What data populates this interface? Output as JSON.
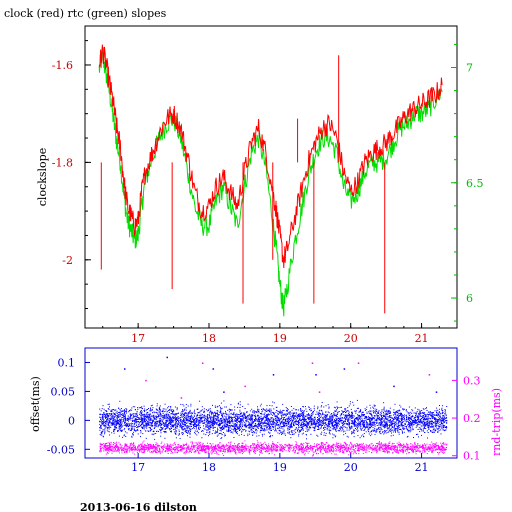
{
  "chart_data": [
    {
      "type": "line",
      "title": "clock (red) rtc (green) slopes",
      "xlabel": "",
      "ylabel": "clockslope",
      "x_ticks": [
        17,
        18,
        19,
        20,
        21
      ],
      "xlim": [
        16.25,
        21.5
      ],
      "ylim": [
        -2.14,
        -1.52
      ],
      "y_ticks": [
        -1.6,
        -1.8,
        -2
      ],
      "y_tick_labels": [
        "-1.6",
        "-1.8",
        "-2"
      ],
      "y2_ticks": [
        7,
        6.5,
        6
      ],
      "y2_tick_labels": [
        "7",
        "6.5",
        "6"
      ],
      "y2lim": [
        5.87,
        7.18
      ],
      "colors": {
        "axes": "#000000",
        "clock": "#ff0000",
        "rtc": "#00dd00",
        "x_tick_labels": "#cc0000",
        "y2_tick_labels": "#00bb00"
      },
      "grid": false,
      "series": [
        {
          "name": "clock",
          "color": "#ff0000",
          "points": [
            [
              16.45,
              -1.6
            ],
            [
              16.5,
              -1.57
            ],
            [
              16.55,
              -1.6
            ],
            [
              16.6,
              -1.64
            ],
            [
              16.65,
              -1.68
            ],
            [
              16.7,
              -1.73
            ],
            [
              16.75,
              -1.77
            ],
            [
              16.8,
              -1.84
            ],
            [
              16.85,
              -1.89
            ],
            [
              16.9,
              -1.91
            ],
            [
              16.95,
              -1.93
            ],
            [
              17.0,
              -1.92
            ],
            [
              17.05,
              -1.86
            ],
            [
              17.1,
              -1.82
            ],
            [
              17.2,
              -1.78
            ],
            [
              17.3,
              -1.74
            ],
            [
              17.4,
              -1.71
            ],
            [
              17.5,
              -1.7
            ],
            [
              17.6,
              -1.73
            ],
            [
              17.7,
              -1.79
            ],
            [
              17.8,
              -1.86
            ],
            [
              17.9,
              -1.9
            ],
            [
              18.0,
              -1.89
            ],
            [
              18.1,
              -1.85
            ],
            [
              18.2,
              -1.83
            ],
            [
              18.3,
              -1.86
            ],
            [
              18.4,
              -1.89
            ],
            [
              18.5,
              -1.82
            ],
            [
              18.6,
              -1.76
            ],
            [
              18.7,
              -1.73
            ],
            [
              18.8,
              -1.78
            ],
            [
              18.9,
              -1.86
            ],
            [
              18.95,
              -1.9
            ],
            [
              19.0,
              -1.95
            ],
            [
              19.05,
              -2.0
            ],
            [
              19.1,
              -1.98
            ],
            [
              19.2,
              -1.92
            ],
            [
              19.3,
              -1.86
            ],
            [
              19.4,
              -1.8
            ],
            [
              19.5,
              -1.76
            ],
            [
              19.6,
              -1.73
            ],
            [
              19.7,
              -1.72
            ],
            [
              19.8,
              -1.75
            ],
            [
              19.9,
              -1.82
            ],
            [
              20.0,
              -1.86
            ],
            [
              20.1,
              -1.84
            ],
            [
              20.2,
              -1.8
            ],
            [
              20.3,
              -1.78
            ],
            [
              20.4,
              -1.77
            ],
            [
              20.5,
              -1.76
            ],
            [
              20.6,
              -1.74
            ],
            [
              20.7,
              -1.72
            ],
            [
              20.8,
              -1.7
            ],
            [
              20.9,
              -1.69
            ],
            [
              21.0,
              -1.68
            ],
            [
              21.1,
              -1.67
            ],
            [
              21.2,
              -1.66
            ],
            [
              21.3,
              -1.64
            ]
          ],
          "spikes": [
            [
              16.48,
              -2.02
            ],
            [
              17.48,
              -2.06
            ],
            [
              18.48,
              -2.09
            ],
            [
              19.48,
              -2.09
            ],
            [
              20.48,
              -2.11
            ],
            [
              19.83,
              -1.58
            ],
            [
              19.25,
              -1.71
            ],
            [
              18.9,
              -2.0
            ]
          ]
        },
        {
          "name": "rtc",
          "color": "#00dd00",
          "axis": "right",
          "points": [
            [
              16.45,
              -1.61
            ],
            [
              16.5,
              -1.58
            ],
            [
              16.55,
              -1.62
            ],
            [
              16.6,
              -1.66
            ],
            [
              16.65,
              -1.71
            ],
            [
              16.7,
              -1.76
            ],
            [
              16.75,
              -1.8
            ],
            [
              16.8,
              -1.87
            ],
            [
              16.85,
              -1.92
            ],
            [
              16.9,
              -1.94
            ],
            [
              16.95,
              -1.96
            ],
            [
              17.0,
              -1.95
            ],
            [
              17.05,
              -1.89
            ],
            [
              17.1,
              -1.84
            ],
            [
              17.2,
              -1.79
            ],
            [
              17.3,
              -1.75
            ],
            [
              17.4,
              -1.72
            ],
            [
              17.5,
              -1.71
            ],
            [
              17.6,
              -1.75
            ],
            [
              17.7,
              -1.82
            ],
            [
              17.8,
              -1.89
            ],
            [
              17.9,
              -1.93
            ],
            [
              18.0,
              -1.93
            ],
            [
              18.1,
              -1.88
            ],
            [
              18.2,
              -1.85
            ],
            [
              18.3,
              -1.89
            ],
            [
              18.4,
              -1.93
            ],
            [
              18.5,
              -1.85
            ],
            [
              18.6,
              -1.78
            ],
            [
              18.7,
              -1.75
            ],
            [
              18.8,
              -1.81
            ],
            [
              18.9,
              -1.92
            ],
            [
              18.95,
              -1.98
            ],
            [
              19.0,
              -2.05
            ],
            [
              19.05,
              -2.1
            ],
            [
              19.1,
              -2.06
            ],
            [
              19.2,
              -1.97
            ],
            [
              19.3,
              -1.9
            ],
            [
              19.4,
              -1.83
            ],
            [
              19.5,
              -1.78
            ],
            [
              19.6,
              -1.75
            ],
            [
              19.7,
              -1.75
            ],
            [
              19.8,
              -1.78
            ],
            [
              19.9,
              -1.85
            ],
            [
              20.0,
              -1.88
            ],
            [
              20.1,
              -1.86
            ],
            [
              20.2,
              -1.82
            ],
            [
              20.3,
              -1.8
            ],
            [
              20.4,
              -1.8
            ],
            [
              20.5,
              -1.79
            ],
            [
              20.6,
              -1.76
            ],
            [
              20.7,
              -1.73
            ],
            [
              20.8,
              -1.72
            ],
            [
              20.9,
              -1.7
            ],
            [
              21.0,
              -1.7
            ],
            [
              21.1,
              -1.69
            ],
            [
              21.2,
              -1.67
            ],
            [
              21.3,
              -1.65
            ]
          ]
        }
      ]
    },
    {
      "type": "scatter",
      "xlabel": "",
      "ylabel": "offset(ms)",
      "y2label": "rnd-trip(ms)",
      "x_ticks": [
        17,
        18,
        19,
        20,
        21
      ],
      "xlim": [
        16.25,
        21.5
      ],
      "ylim": [
        -0.065,
        0.125
      ],
      "y_ticks": [
        0.1,
        0.05,
        0,
        -0.05
      ],
      "y_tick_labels": [
        "0.1",
        "0.05",
        "0",
        "-0.05"
      ],
      "y2_ticks": [
        0.3,
        0.2,
        0.1
      ],
      "y2_tick_labels": [
        "0.3",
        "0.2",
        "0.1"
      ],
      "y2lim": [
        0.094,
        0.386
      ],
      "colors": {
        "axes": "#0000cc",
        "offset": "#0000ff",
        "rnd_trip": "#ff00ff",
        "x_tick_labels": "#0000cc",
        "ylabel": "#000000",
        "y2label": "#ff00ff"
      },
      "grid": false,
      "series": [
        {
          "name": "offset",
          "color": "#0000ff",
          "x_range": [
            16.45,
            21.35
          ],
          "center": 0.0,
          "spread": 0.03,
          "count": 5000
        },
        {
          "name": "rnd-trip",
          "color": "#ff00ff",
          "axis": "right",
          "x_range": [
            16.45,
            21.35
          ],
          "center": 0.122,
          "spread": 0.018,
          "count": 2400
        }
      ],
      "outliers": [
        [
          16.8,
          0.09
        ],
        [
          17.1,
          0.07
        ],
        [
          17.4,
          0.11
        ],
        [
          17.9,
          0.1
        ],
        [
          18.05,
          0.09
        ],
        [
          18.5,
          0.06
        ],
        [
          18.9,
          0.08
        ],
        [
          19.45,
          0.1
        ],
        [
          19.5,
          0.08
        ],
        [
          19.55,
          0.05
        ],
        [
          19.9,
          0.09
        ],
        [
          20.1,
          0.1
        ],
        [
          20.6,
          0.06
        ],
        [
          21.1,
          0.08
        ],
        [
          21.2,
          0.05
        ],
        [
          17.6,
          0.04
        ],
        [
          18.2,
          0.05
        ]
      ]
    }
  ],
  "footer": "2013-06-16 dilston"
}
